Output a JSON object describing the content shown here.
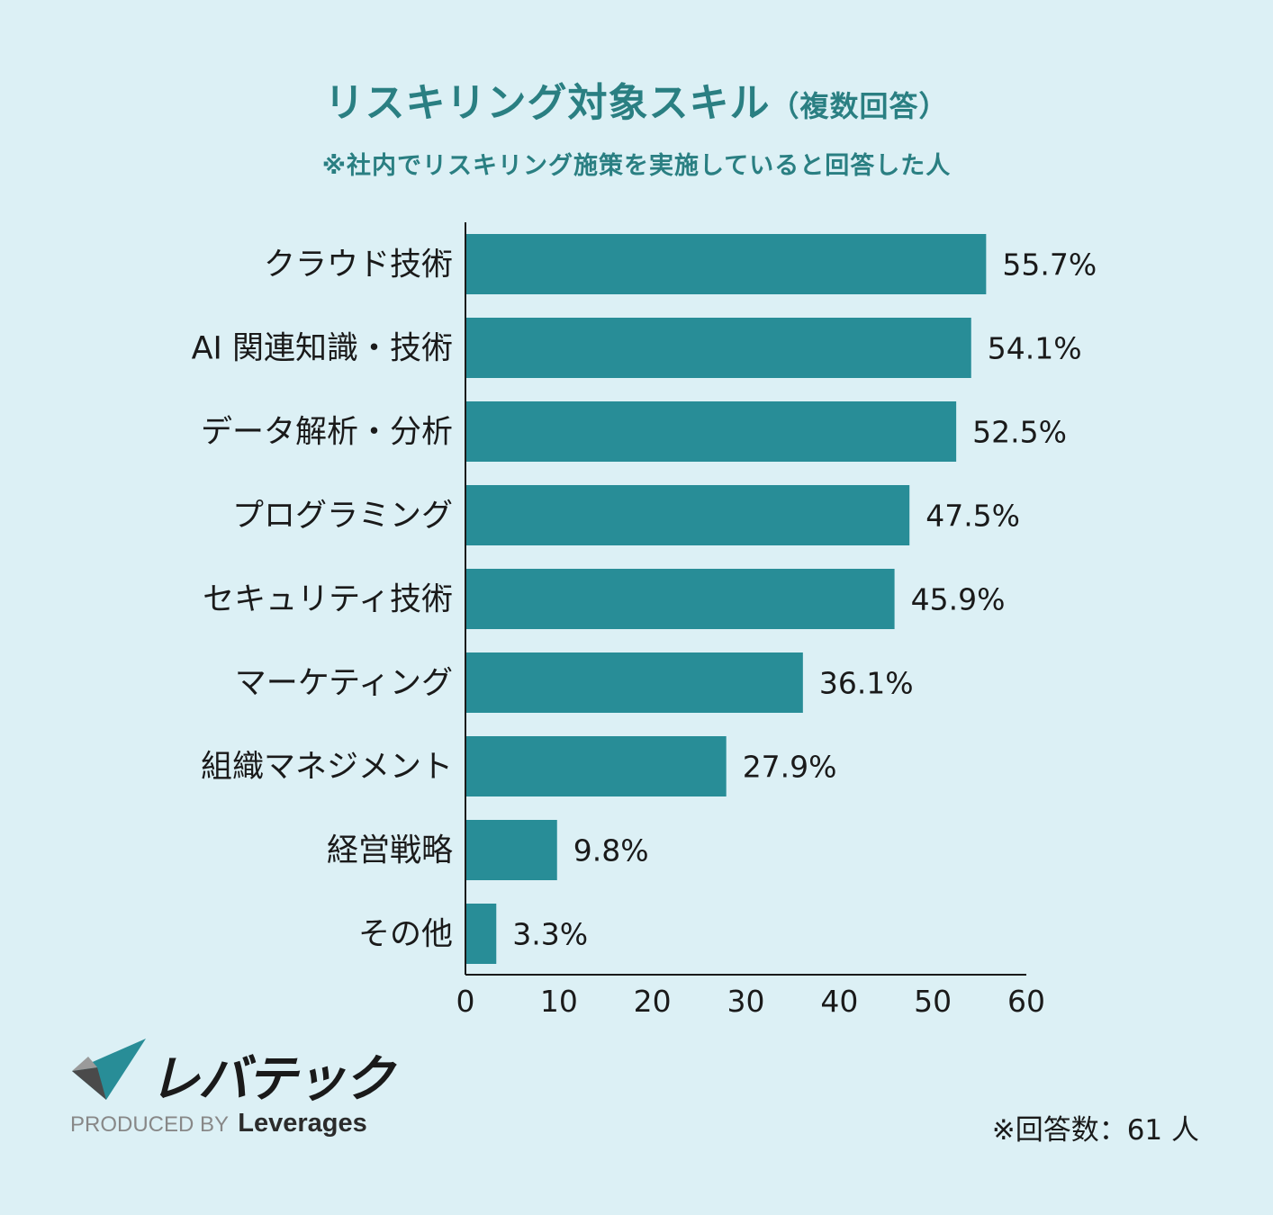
{
  "header": {
    "title": "リスキリング対象スキル",
    "title_paren": "（複数回答）",
    "subtitle": "※社内でリスキリング施策を実施していると回答した人"
  },
  "chart_data": {
    "type": "bar",
    "orientation": "horizontal",
    "title": "リスキリング対象スキル（複数回答）",
    "subtitle": "※社内でリスキリング施策を実施していると回答した人",
    "categories": [
      "クラウド技術",
      "AI 関連知識・技術",
      "データ解析・分析",
      "プログラミング",
      "セキュリティ技術",
      "マーケティング",
      "組織マネジメント",
      "経営戦略",
      "その他"
    ],
    "values": [
      55.7,
      54.1,
      52.5,
      47.5,
      45.9,
      36.1,
      27.9,
      9.8,
      3.3
    ],
    "value_labels": [
      "55.7%",
      "54.1%",
      "52.5%",
      "47.5%",
      "45.9%",
      "36.1%",
      "27.9%",
      "9.8%",
      "3.3%"
    ],
    "xlim": [
      0,
      60
    ],
    "xticks": [
      0,
      10,
      20,
      30,
      40,
      50,
      60
    ],
    "xlabel": "",
    "ylabel": "",
    "grid": false,
    "bar_color": "#288d97"
  },
  "footer": {
    "logo_text": "レバテック",
    "produced_by": "PRODUCED BY",
    "brand": "Leverages",
    "respondents": "※回答数：61 人"
  }
}
